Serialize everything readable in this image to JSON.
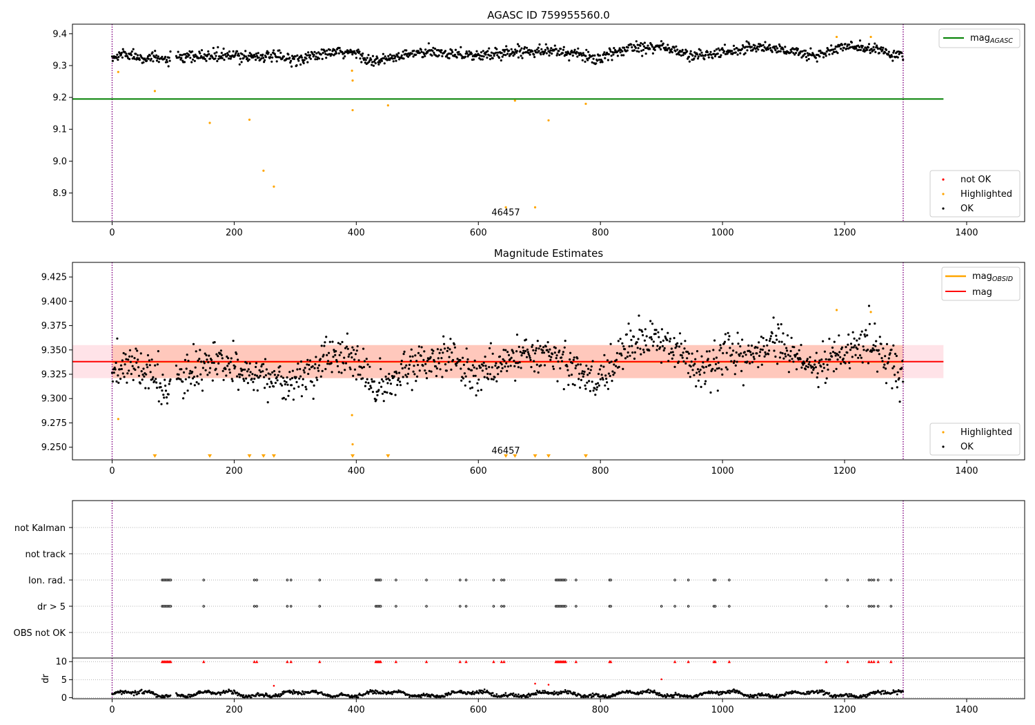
{
  "panels": {
    "top": {
      "title": "AGASC ID 759955560.0",
      "annotation": "46457",
      "legend_line": {
        "label": "mag",
        "sub": "AGASC"
      },
      "legend_points": [
        {
          "label": "not OK"
        },
        {
          "label": "Highlighted"
        },
        {
          "label": "OK"
        }
      ]
    },
    "middle": {
      "title": "Magnitude Estimates",
      "annotation": "46457",
      "legend_lines": [
        {
          "label": "mag",
          "sub": "OBSID"
        },
        {
          "label": "mag",
          "sub": ""
        }
      ],
      "legend_points": [
        {
          "label": "Highlighted"
        },
        {
          "label": "OK"
        }
      ]
    },
    "flags": {
      "rows": [
        "not Kalman",
        "not track",
        "Ion. rad.",
        "dr > 5",
        "OBS not OK"
      ]
    },
    "dr": {
      "ylabel": "dr"
    }
  },
  "colors": {
    "ok": "#000000",
    "highlighted": "#ffa500",
    "not_ok": "#ff0000",
    "agasc_line": "#008000",
    "mag_line": "#ff0000",
    "obsid_line": "#ffa500",
    "band_inner": "#ffa07a",
    "band_outer": "#ffc0cb",
    "vline": "#800080"
  },
  "chart_data": [
    {
      "type": "scatter",
      "title": "AGASC ID 759955560.0",
      "xlim": [
        -65,
        1495
      ],
      "ylim": [
        8.81,
        9.43
      ],
      "xticks": [
        0,
        200,
        400,
        600,
        800,
        1000,
        1200,
        1400
      ],
      "yticks": [
        8.9,
        9.0,
        9.1,
        9.2,
        9.3,
        9.4
      ],
      "hline": {
        "name": "mag_AGASC",
        "y": 9.195,
        "x_range": [
          -65,
          1362
        ]
      },
      "vlines": [
        0,
        1296
      ],
      "ok_trend": [
        [
          0,
          9.32
        ],
        [
          20,
          9.34
        ],
        [
          40,
          9.33
        ],
        [
          80,
          9.32
        ],
        [
          100,
          9.32
        ],
        [
          150,
          9.33
        ],
        [
          200,
          9.33
        ],
        [
          250,
          9.33
        ],
        [
          300,
          9.32
        ],
        [
          330,
          9.33
        ],
        [
          360,
          9.34
        ],
        [
          400,
          9.34
        ],
        [
          430,
          9.31
        ],
        [
          450,
          9.32
        ],
        [
          500,
          9.34
        ],
        [
          560,
          9.34
        ],
        [
          600,
          9.33
        ],
        [
          640,
          9.34
        ],
        [
          700,
          9.35
        ],
        [
          750,
          9.34
        ],
        [
          800,
          9.32
        ],
        [
          850,
          9.36
        ],
        [
          900,
          9.36
        ],
        [
          950,
          9.33
        ],
        [
          1000,
          9.34
        ],
        [
          1050,
          9.36
        ],
        [
          1100,
          9.35
        ],
        [
          1150,
          9.33
        ],
        [
          1200,
          9.36
        ],
        [
          1250,
          9.35
        ],
        [
          1296,
          9.33
        ]
      ],
      "highlighted": [
        [
          10,
          9.28
        ],
        [
          70,
          9.22
        ],
        [
          160,
          9.12
        ],
        [
          225,
          9.13
        ],
        [
          248,
          8.97
        ],
        [
          265,
          8.92
        ],
        [
          393,
          9.284
        ],
        [
          394,
          9.253
        ],
        [
          394,
          9.16
        ],
        [
          452,
          9.175
        ],
        [
          645,
          8.855
        ],
        [
          660,
          9.19
        ],
        [
          693,
          8.855
        ],
        [
          715,
          9.128
        ],
        [
          776,
          9.18
        ],
        [
          1187,
          9.39
        ],
        [
          1243,
          9.39
        ]
      ],
      "annotation": {
        "text": "46457",
        "x": 648,
        "y": 8.83
      }
    },
    {
      "type": "scatter",
      "title": "Magnitude Estimates",
      "xlim": [
        -65,
        1495
      ],
      "ylim": [
        9.237,
        9.44
      ],
      "xticks": [
        0,
        200,
        400,
        600,
        800,
        1000,
        1200,
        1400
      ],
      "yticks": [
        9.25,
        9.275,
        9.3,
        9.325,
        9.35,
        9.375,
        9.4,
        9.425
      ],
      "mag_line": {
        "name": "mag",
        "y": 9.338
      },
      "band_1sigma": [
        9.321,
        9.355
      ],
      "band_range_x": [
        -65,
        1362
      ],
      "vlines": [
        0,
        1296
      ],
      "ok_trend": [
        [
          0,
          9.32
        ],
        [
          25,
          9.34
        ],
        [
          60,
          9.325
        ],
        [
          90,
          9.31
        ],
        [
          130,
          9.325
        ],
        [
          160,
          9.335
        ],
        [
          200,
          9.33
        ],
        [
          250,
          9.325
        ],
        [
          290,
          9.315
        ],
        [
          320,
          9.325
        ],
        [
          360,
          9.345
        ],
        [
          400,
          9.34
        ],
        [
          430,
          9.31
        ],
        [
          460,
          9.315
        ],
        [
          500,
          9.34
        ],
        [
          560,
          9.34
        ],
        [
          600,
          9.325
        ],
        [
          640,
          9.335
        ],
        [
          680,
          9.35
        ],
        [
          720,
          9.345
        ],
        [
          760,
          9.33
        ],
        [
          790,
          9.315
        ],
        [
          820,
          9.335
        ],
        [
          850,
          9.36
        ],
        [
          900,
          9.36
        ],
        [
          940,
          9.345
        ],
        [
          960,
          9.325
        ],
        [
          1000,
          9.34
        ],
        [
          1050,
          9.345
        ],
        [
          1080,
          9.36
        ],
        [
          1110,
          9.345
        ],
        [
          1150,
          9.33
        ],
        [
          1190,
          9.345
        ],
        [
          1240,
          9.36
        ],
        [
          1296,
          9.325
        ]
      ],
      "highlighted": [
        [
          10,
          9.279
        ],
        [
          393,
          9.283
        ],
        [
          394,
          9.253
        ],
        [
          1187,
          9.391
        ],
        [
          1243,
          9.389
        ]
      ],
      "offscale_markers_x": [
        70,
        160,
        225,
        248,
        265,
        394,
        452,
        645,
        660,
        693,
        715,
        776
      ],
      "annotation": {
        "text": "46457",
        "x": 648,
        "y": 9.24
      }
    },
    {
      "type": "scatter",
      "xlim": [
        -65,
        1495
      ],
      "categories": [
        "not Kalman",
        "not track",
        "Ion. rad.",
        "dr > 5",
        "OBS not OK"
      ],
      "vlines": [
        0,
        1296
      ],
      "ion_rad_x": [
        82,
        84,
        86,
        88,
        90,
        92,
        94,
        96,
        150,
        233,
        237,
        287,
        293,
        340,
        432,
        434,
        436,
        438,
        440,
        465,
        515,
        570,
        580,
        625,
        638,
        642,
        727,
        729,
        731,
        733,
        735,
        737,
        739,
        741,
        743,
        760,
        815,
        817,
        922,
        944,
        986,
        988,
        1011,
        1170,
        1205,
        1240,
        1244,
        1248,
        1255,
        1276
      ],
      "dr_gt5_x": [
        82,
        84,
        86,
        88,
        90,
        92,
        94,
        96,
        150,
        233,
        237,
        287,
        293,
        340,
        432,
        434,
        436,
        438,
        440,
        465,
        515,
        570,
        580,
        625,
        638,
        642,
        727,
        729,
        731,
        733,
        735,
        737,
        739,
        741,
        743,
        760,
        815,
        817,
        900,
        922,
        944,
        986,
        988,
        1011,
        1170,
        1205,
        1240,
        1244,
        1248,
        1255,
        1276
      ]
    },
    {
      "type": "scatter",
      "ylabel": "dr",
      "xlim": [
        -65,
        1495
      ],
      "ylim": [
        -0.3,
        11
      ],
      "xticks": [
        0,
        200,
        400,
        600,
        800,
        1000,
        1200,
        1400
      ],
      "yticks": [
        0,
        5,
        10
      ],
      "vlines": [
        0,
        1296
      ],
      "clipped_at_10_x": [
        82,
        84,
        86,
        88,
        90,
        92,
        94,
        96,
        150,
        233,
        237,
        287,
        293,
        340,
        432,
        434,
        436,
        438,
        440,
        465,
        515,
        570,
        580,
        625,
        638,
        642,
        727,
        729,
        731,
        733,
        735,
        737,
        739,
        741,
        743,
        760,
        815,
        817,
        922,
        944,
        986,
        988,
        1011,
        1170,
        1205,
        1240,
        1244,
        1248,
        1255,
        1276
      ],
      "red_points": [
        [
          265,
          3.3
        ],
        [
          693,
          3.9
        ],
        [
          715,
          3.6
        ],
        [
          900,
          5.1
        ]
      ]
    }
  ]
}
